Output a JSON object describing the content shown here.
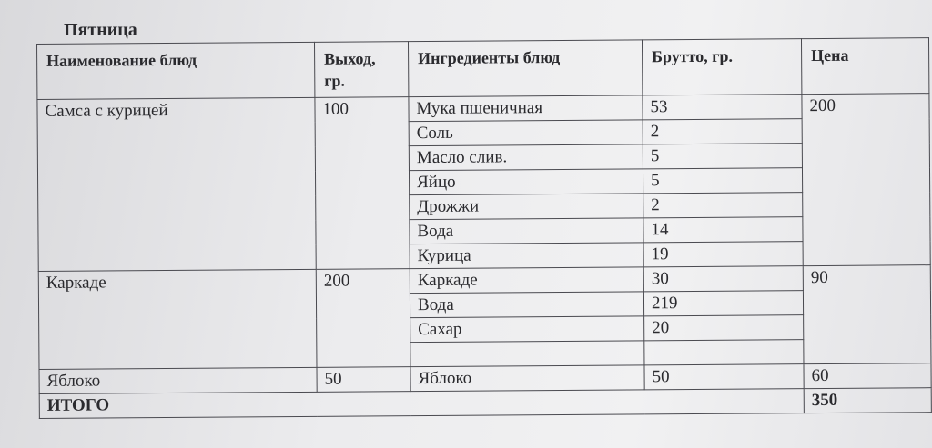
{
  "title": "Пятница",
  "headers": [
    "Наименование блюд",
    "Выход, гр.",
    "Ингредиенты блюд",
    "Брутто, гр.",
    "Цена"
  ],
  "dishes": [
    {
      "name": "Самса с курицей",
      "yield": "100",
      "price": "200",
      "ingredients": [
        {
          "name": "Мука пшеничная",
          "gross": "53"
        },
        {
          "name": "Соль",
          "gross": "2"
        },
        {
          "name": "Масло слив.",
          "gross": "5"
        },
        {
          "name": "Яйцо",
          "gross": "5"
        },
        {
          "name": "Дрожжи",
          "gross": "2"
        },
        {
          "name": "Вода",
          "gross": "14"
        },
        {
          "name": "Курица",
          "gross": "19"
        }
      ]
    },
    {
      "name": "Каркаде",
      "yield": "200",
      "price": "90",
      "ingredients": [
        {
          "name": "Каркаде",
          "gross": "30"
        },
        {
          "name": "Вода",
          "gross": "219"
        },
        {
          "name": "Сахар",
          "gross": "20"
        },
        {
          "name": "",
          "gross": ""
        }
      ]
    },
    {
      "name": "Яблоко",
      "yield": "50",
      "price": "60",
      "ingredients": [
        {
          "name": "Яблоко",
          "gross": "50"
        }
      ]
    }
  ],
  "total": {
    "label": "ИТОГО",
    "value": "350"
  }
}
